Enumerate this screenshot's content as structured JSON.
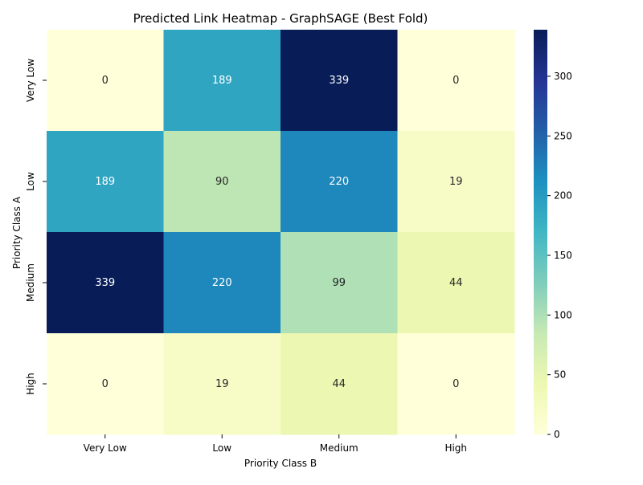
{
  "chart_data": {
    "type": "heatmap",
    "title": "Predicted Link Heatmap - GraphSAGE (Best Fold)",
    "xlabel": "Priority Class B",
    "ylabel": "Priority Class A",
    "x_categories": [
      "Very Low",
      "Low",
      "Medium",
      "High"
    ],
    "y_categories": [
      "Very Low",
      "Low",
      "Medium",
      "High"
    ],
    "values": [
      [
        0,
        189,
        339,
        0
      ],
      [
        189,
        90,
        220,
        19
      ],
      [
        339,
        220,
        99,
        44
      ],
      [
        0,
        19,
        44,
        0
      ]
    ],
    "colorbar": {
      "colormap": "YlGnBu",
      "range": [
        0,
        339
      ],
      "ticks": [
        0,
        50,
        100,
        150,
        200,
        250,
        300
      ]
    }
  }
}
